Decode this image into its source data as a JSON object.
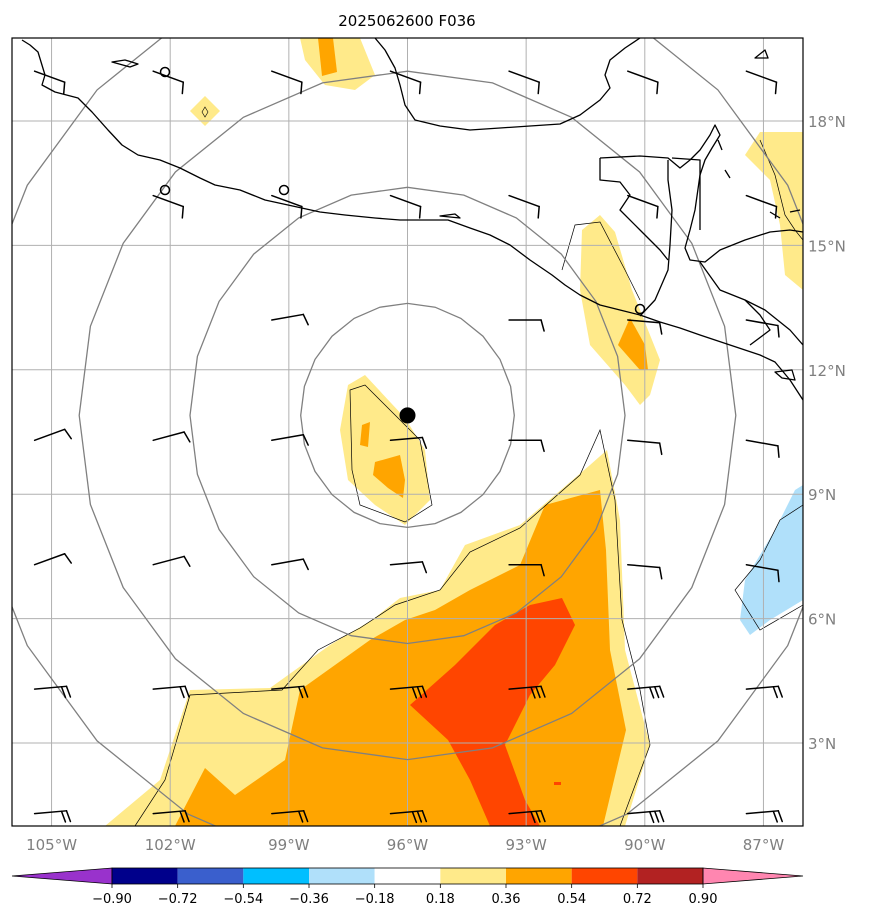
{
  "title": "2025062600 F036",
  "map": {
    "lon_range": [
      -106.0,
      -86.0
    ],
    "lat_range": [
      1.0,
      20.0
    ],
    "lon_ticks": [
      {
        "value": -105,
        "label": "105°W"
      },
      {
        "value": -102,
        "label": "102°W"
      },
      {
        "value": -99,
        "label": "99°W"
      },
      {
        "value": -96,
        "label": "96°W"
      },
      {
        "value": -93,
        "label": "93°W"
      },
      {
        "value": -90,
        "label": "90°W"
      },
      {
        "value": -87,
        "label": "87°W"
      }
    ],
    "lat_ticks": [
      {
        "value": 3,
        "label": "3°N"
      },
      {
        "value": 6,
        "label": "6°N"
      },
      {
        "value": 9,
        "label": "9°N"
      },
      {
        "value": 12,
        "label": "12°N"
      },
      {
        "value": 15,
        "label": "15°N"
      },
      {
        "value": 18,
        "label": "18°N"
      }
    ],
    "storm_center": {
      "lon": -96.0,
      "lat": 10.9
    },
    "range_ring_radii_deg": [
      2.7,
      5.5,
      8.3,
      11.1
    ]
  },
  "colorbar": {
    "labels": [
      "−0.90",
      "−0.72",
      "−0.54",
      "−0.36",
      "−0.18",
      "0.18",
      "0.36",
      "0.54",
      "0.72",
      "0.90"
    ],
    "bins": [
      {
        "from": null,
        "to": -0.9,
        "color": "#9932cc"
      },
      {
        "from": -0.9,
        "to": -0.72,
        "color": "#00008b"
      },
      {
        "from": -0.72,
        "to": -0.54,
        "color": "#3a5fcd"
      },
      {
        "from": -0.54,
        "to": -0.36,
        "color": "#00bfff"
      },
      {
        "from": -0.36,
        "to": -0.18,
        "color": "#b0e0fa"
      },
      {
        "from": -0.18,
        "to": 0.18,
        "color": "#ffffff"
      },
      {
        "from": 0.18,
        "to": 0.36,
        "color": "#ffea8a"
      },
      {
        "from": 0.36,
        "to": 0.54,
        "color": "#ffa500"
      },
      {
        "from": 0.54,
        "to": 0.72,
        "color": "#ff4500"
      },
      {
        "from": 0.72,
        "to": 0.9,
        "color": "#b22222"
      },
      {
        "from": 0.9,
        "to": null,
        "color": "#ff86b0"
      }
    ]
  }
}
